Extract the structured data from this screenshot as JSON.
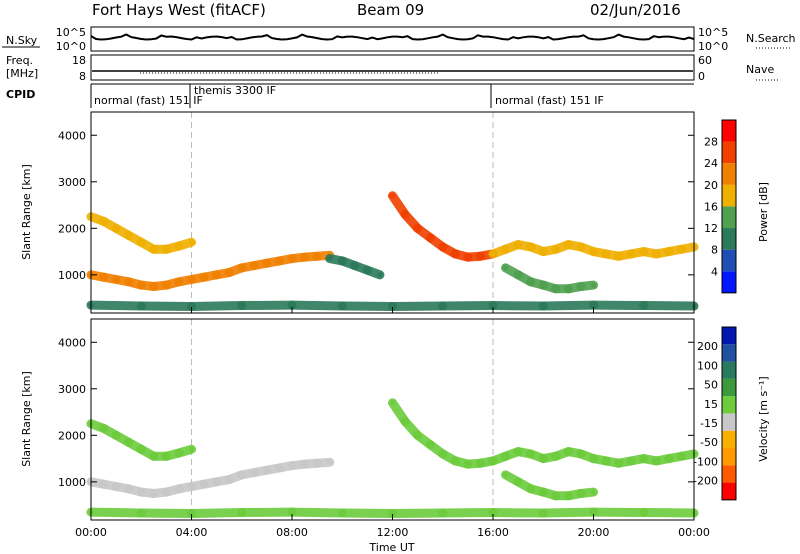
{
  "header": {
    "radar_title": "Fort Hays West (fitACF)",
    "beam": "Beam 09",
    "date": "02/Jun/2016"
  },
  "panels": {
    "nsky": {
      "left_label": "N.Sky",
      "right_label": "N.Search",
      "left_ticks": [
        "10^5",
        "10^0"
      ],
      "right_ticks": [
        "10^5",
        "10^0"
      ]
    },
    "freq": {
      "left_label_1": "Freq.",
      "left_label_2": "[MHz]",
      "left_ticks": [
        "18",
        "8"
      ],
      "right_ticks": [
        "60",
        "0"
      ],
      "right_label": "Nave"
    },
    "cpid": {
      "label": "CPID",
      "segments": [
        {
          "label": "normal (fast) 151 IF",
          "start_hour": 0.0
        },
        {
          "label": "themis 3300 IF",
          "start_hour": 3.7
        },
        {
          "label": "normal (fast) 151 IF",
          "start_hour": 16.0
        }
      ]
    }
  },
  "time_axis": {
    "label": "Time UT",
    "ticks": [
      "00:00",
      "04:00",
      "08:00",
      "12:00",
      "16:00",
      "20:00",
      "00:00"
    ]
  },
  "colors": {
    "power_scale": [
      "#0018ff",
      "#1f4fb4",
      "#2b7a5a",
      "#4fa04f",
      "#f0b000",
      "#f08000",
      "#f04000",
      "#ff0000"
    ],
    "velocity_scale": [
      "#ff0000",
      "#ff5a00",
      "#ff9a00",
      "#f8b000",
      "#c8c8c8",
      "#6ccc3c",
      "#3c9a3c",
      "#2a7a60",
      "#2050a0",
      "#0018b0"
    ]
  },
  "chart_data": [
    {
      "type": "heatmap",
      "title": "",
      "xlabel": "",
      "ylabel": "Slant Range [km]",
      "xlim": [
        0,
        24
      ],
      "ylim": [
        180,
        4500
      ],
      "yticks": [
        1000,
        2000,
        3000,
        4000
      ],
      "colorbar": {
        "label": "Power [dB]",
        "ticks": [
          "28",
          "24",
          "20",
          "16",
          "12",
          "8",
          "4"
        ],
        "range": [
          0,
          30
        ]
      },
      "series": [
        {
          "x": [
            0.0,
            0.5,
            1.0,
            1.5,
            2.0,
            2.5,
            3.0,
            3.5,
            4.0
          ],
          "y": [
            2250,
            2150,
            2000,
            1850,
            1700,
            1550,
            1550,
            1620,
            1700
          ],
          "level": 16
        },
        {
          "x": [
            0.0,
            0.5,
            1.0,
            1.5,
            2.0,
            2.5,
            3.0,
            3.5,
            4.0,
            4.5,
            5.0,
            5.5,
            6.0,
            6.5,
            7.0,
            7.5,
            8.0,
            8.5,
            9.0,
            9.5
          ],
          "y": [
            1000,
            950,
            900,
            850,
            780,
            750,
            780,
            850,
            900,
            950,
            1000,
            1050,
            1150,
            1200,
            1250,
            1300,
            1350,
            1380,
            1400,
            1420
          ],
          "level": 20
        },
        {
          "x": [
            9.5,
            10.0,
            10.5,
            11.0,
            11.5
          ],
          "y": [
            1350,
            1300,
            1200,
            1100,
            1000
          ],
          "level": 8
        },
        {
          "x": [
            12.0,
            12.5,
            13.0,
            13.5,
            14.0,
            14.5,
            15.0,
            15.5,
            16.0
          ],
          "y": [
            2700,
            2300,
            2000,
            1800,
            1600,
            1450,
            1380,
            1400,
            1450
          ],
          "level": 24
        },
        {
          "x": [
            16.0,
            16.5,
            17.0,
            17.5,
            18.0,
            18.5,
            19.0,
            19.5,
            20.0,
            20.5,
            21.0,
            21.5,
            22.0,
            22.5,
            23.0,
            23.5,
            24.0
          ],
          "y": [
            1450,
            1550,
            1650,
            1600,
            1500,
            1550,
            1650,
            1600,
            1500,
            1450,
            1400,
            1450,
            1500,
            1450,
            1500,
            1550,
            1600
          ],
          "level": 18
        },
        {
          "x": [
            16.5,
            17.0,
            17.5,
            18.0,
            18.5,
            19.0,
            19.5,
            20.0
          ],
          "y": [
            1150,
            1000,
            850,
            780,
            700,
            700,
            750,
            780
          ],
          "level": 14
        },
        {
          "x": [
            0.0,
            2.0,
            4.0,
            6.0,
            8.0,
            10.0,
            12.0,
            14.0,
            16.0,
            18.0,
            20.0,
            22.0,
            24.0
          ],
          "y": [
            350,
            330,
            320,
            340,
            350,
            330,
            320,
            330,
            340,
            330,
            350,
            340,
            330
          ],
          "level": 10
        }
      ]
    },
    {
      "type": "heatmap",
      "title": "",
      "xlabel": "Time UT",
      "ylabel": "Slant Range [km]",
      "xlim": [
        0,
        24
      ],
      "ylim": [
        180,
        4500
      ],
      "yticks": [
        1000,
        2000,
        3000,
        4000
      ],
      "colorbar": {
        "label": "Velocity [m s⁻¹]",
        "ticks": [
          "200",
          "100",
          "50",
          "15",
          "-15",
          "-50",
          "-100",
          "-200"
        ],
        "range": [
          -250,
          250
        ]
      },
      "series": [
        {
          "x": [
            0.0,
            0.5,
            1.0,
            1.5,
            2.0,
            2.5,
            3.0,
            3.5,
            4.0
          ],
          "y": [
            2250,
            2150,
            2000,
            1850,
            1700,
            1550,
            1550,
            1620,
            1700
          ],
          "level": 0
        },
        {
          "x": [
            0.0,
            0.5,
            1.0,
            1.5,
            2.0,
            2.5,
            3.0,
            3.5,
            4.0,
            4.5,
            5.0,
            5.5,
            6.0,
            6.5,
            7.0,
            7.5,
            8.0,
            8.5,
            9.0,
            9.5
          ],
          "y": [
            1000,
            950,
            900,
            850,
            780,
            750,
            780,
            850,
            900,
            950,
            1000,
            1050,
            1150,
            1200,
            1250,
            1300,
            1350,
            1380,
            1400,
            1420
          ],
          "level": -40
        },
        {
          "x": [
            12.0,
            12.5,
            13.0,
            13.5,
            14.0,
            14.5,
            15.0,
            15.5,
            16.0
          ],
          "y": [
            2700,
            2300,
            2000,
            1800,
            1600,
            1450,
            1380,
            1400,
            1450
          ],
          "level": 0
        },
        {
          "x": [
            16.0,
            16.5,
            17.0,
            17.5,
            18.0,
            18.5,
            19.0,
            19.5,
            20.0,
            20.5,
            21.0,
            21.5,
            22.0,
            22.5,
            23.0,
            23.5,
            24.0
          ],
          "y": [
            1450,
            1550,
            1650,
            1600,
            1500,
            1550,
            1650,
            1600,
            1500,
            1450,
            1400,
            1450,
            1500,
            1450,
            1500,
            1550,
            1600
          ],
          "level": 0
        },
        {
          "x": [
            16.5,
            17.0,
            17.5,
            18.0,
            18.5,
            19.0,
            19.5,
            20.0
          ],
          "y": [
            1150,
            1000,
            850,
            780,
            700,
            700,
            750,
            780
          ],
          "level": 5
        },
        {
          "x": [
            0.0,
            2.0,
            4.0,
            6.0,
            8.0,
            10.0,
            12.0,
            14.0,
            16.0,
            18.0,
            20.0,
            22.0,
            24.0
          ],
          "y": [
            350,
            330,
            320,
            340,
            350,
            330,
            320,
            330,
            340,
            330,
            350,
            340,
            330
          ],
          "level": 30
        }
      ]
    }
  ]
}
